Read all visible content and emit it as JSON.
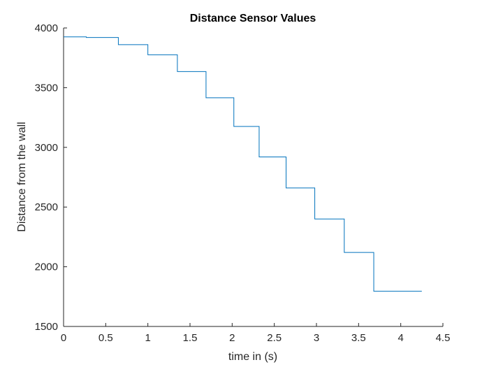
{
  "chart_data": {
    "type": "line",
    "title": "Distance Sensor Values",
    "xlabel": "time in (s)",
    "ylabel": "Distance from the wall",
    "xlim": [
      0,
      4.5
    ],
    "ylim": [
      1500,
      4000
    ],
    "xticks": [
      0,
      0.5,
      1,
      1.5,
      2,
      2.5,
      3,
      3.5,
      4,
      4.5
    ],
    "xtick_labels": [
      "0",
      "0.5",
      "1",
      "1.5",
      "2",
      "2.5",
      "3",
      "3.5",
      "4",
      "4.5"
    ],
    "yticks": [
      1500,
      2000,
      2500,
      3000,
      3500,
      4000
    ],
    "ytick_labels": [
      "1500",
      "2000",
      "2500",
      "3000",
      "3500",
      "4000"
    ],
    "grid": false,
    "legend": "none",
    "color": "#0072bd",
    "series": [
      {
        "step": "post",
        "x": [
          0,
          0.27,
          0.65,
          1.0,
          1.35,
          1.69,
          2.02,
          2.32,
          2.64,
          2.98,
          3.33,
          3.68,
          4.25
        ],
        "values": [
          3925,
          3920,
          3860,
          3775,
          3635,
          3415,
          3175,
          2920,
          2660,
          2400,
          2120,
          1795,
          1795
        ]
      }
    ]
  }
}
